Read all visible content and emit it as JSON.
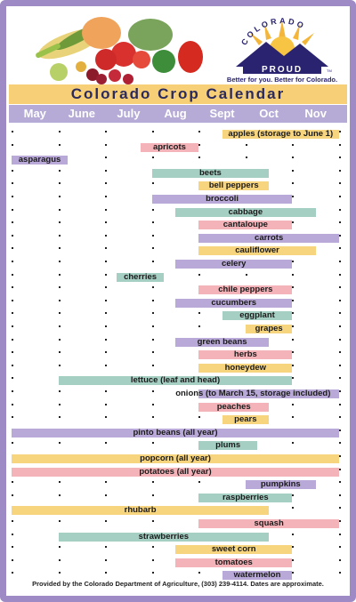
{
  "header": {
    "title": "Colorado Crop Calendar",
    "logo_arc_text": "COLORADO",
    "logo_banner_text": "PROUD",
    "logo_tagline": "Better for you. Better for Colorado.",
    "logo_trademark": "TM"
  },
  "footer": {
    "text": "Provided by the Colorado Department of Agriculture, (303) 239-4114. Dates are approximate."
  },
  "colors": {
    "frame": "#9e8ac4",
    "title_bar": "#f7cf76",
    "months_bar": "#b6aad6",
    "peach": "#f4b3b8",
    "yellow": "#f7d47e",
    "purple": "#b9a9d8",
    "teal": "#a6cfc3"
  },
  "chart_data": {
    "type": "gantt",
    "title": "Colorado Crop Calendar",
    "months": [
      "May",
      "June",
      "July",
      "Aug",
      "Sept",
      "Oct",
      "Nov"
    ],
    "start_month_index_note": "",
    "crops": [
      {
        "name": "apples (storage to June 1)",
        "start": 5.5,
        "end": 8.0,
        "color": "yellow"
      },
      {
        "name": "apricots",
        "start": 3.75,
        "end": 5.0,
        "color": "peach"
      },
      {
        "name": "asparagus",
        "start": 1.0,
        "end": 2.2,
        "color": "purple"
      },
      {
        "name": "beets",
        "start": 4.0,
        "end": 6.5,
        "color": "teal"
      },
      {
        "name": "bell peppers",
        "start": 5.0,
        "end": 6.5,
        "color": "yellow"
      },
      {
        "name": "broccoli",
        "start": 4.0,
        "end": 7.0,
        "color": "purple"
      },
      {
        "name": "cabbage",
        "start": 4.5,
        "end": 7.5,
        "color": "teal"
      },
      {
        "name": "cantaloupe",
        "start": 5.0,
        "end": 7.0,
        "color": "peach"
      },
      {
        "name": "carrots",
        "start": 5.0,
        "end": 8.0,
        "color": "purple"
      },
      {
        "name": "cauliflower",
        "start": 5.0,
        "end": 7.5,
        "color": "yellow"
      },
      {
        "name": "celery",
        "start": 4.5,
        "end": 7.0,
        "color": "purple"
      },
      {
        "name": "cherries",
        "start": 3.25,
        "end": 4.25,
        "color": "teal"
      },
      {
        "name": "chile peppers",
        "start": 5.0,
        "end": 7.0,
        "color": "peach"
      },
      {
        "name": "cucumbers",
        "start": 4.5,
        "end": 7.0,
        "color": "purple"
      },
      {
        "name": "eggplant",
        "start": 5.5,
        "end": 7.0,
        "color": "teal"
      },
      {
        "name": "grapes",
        "start": 6.0,
        "end": 7.0,
        "color": "yellow"
      },
      {
        "name": "green beans",
        "start": 4.5,
        "end": 6.5,
        "color": "purple"
      },
      {
        "name": "herbs",
        "start": 5.0,
        "end": 7.0,
        "color": "peach"
      },
      {
        "name": "honeydew",
        "start": 5.0,
        "end": 7.0,
        "color": "yellow"
      },
      {
        "name": "lettuce (leaf and head)",
        "start": 2.0,
        "end": 7.0,
        "color": "teal"
      },
      {
        "name": "onions (to March 15, storage included)",
        "start": 5.0,
        "end": 8.0,
        "color": "purple"
      },
      {
        "name": "peaches",
        "start": 5.0,
        "end": 6.5,
        "color": "peach"
      },
      {
        "name": "pears",
        "start": 5.5,
        "end": 6.5,
        "color": "yellow"
      },
      {
        "name": "pinto beans (all year)",
        "start": 1.0,
        "end": 8.0,
        "color": "purple"
      },
      {
        "name": "plums",
        "start": 5.0,
        "end": 6.25,
        "color": "teal"
      },
      {
        "name": "popcorn (all year)",
        "start": 1.0,
        "end": 8.0,
        "color": "yellow"
      },
      {
        "name": "potatoes (all year)",
        "start": 1.0,
        "end": 8.0,
        "color": "peach"
      },
      {
        "name": "pumpkins",
        "start": 6.0,
        "end": 7.5,
        "color": "purple"
      },
      {
        "name": "raspberries",
        "start": 5.0,
        "end": 7.0,
        "color": "teal"
      },
      {
        "name": "rhubarb",
        "start": 1.0,
        "end": 6.5,
        "color": "yellow"
      },
      {
        "name": "squash",
        "start": 5.0,
        "end": 8.0,
        "color": "peach"
      },
      {
        "name": "strawberries",
        "start": 2.0,
        "end": 6.5,
        "color": "teal"
      },
      {
        "name": "sweet corn",
        "start": 4.5,
        "end": 7.0,
        "color": "yellow"
      },
      {
        "name": "tomatoes",
        "start": 4.5,
        "end": 7.0,
        "color": "peach"
      },
      {
        "name": "watermelon",
        "start": 5.5,
        "end": 7.0,
        "color": "purple"
      }
    ]
  }
}
